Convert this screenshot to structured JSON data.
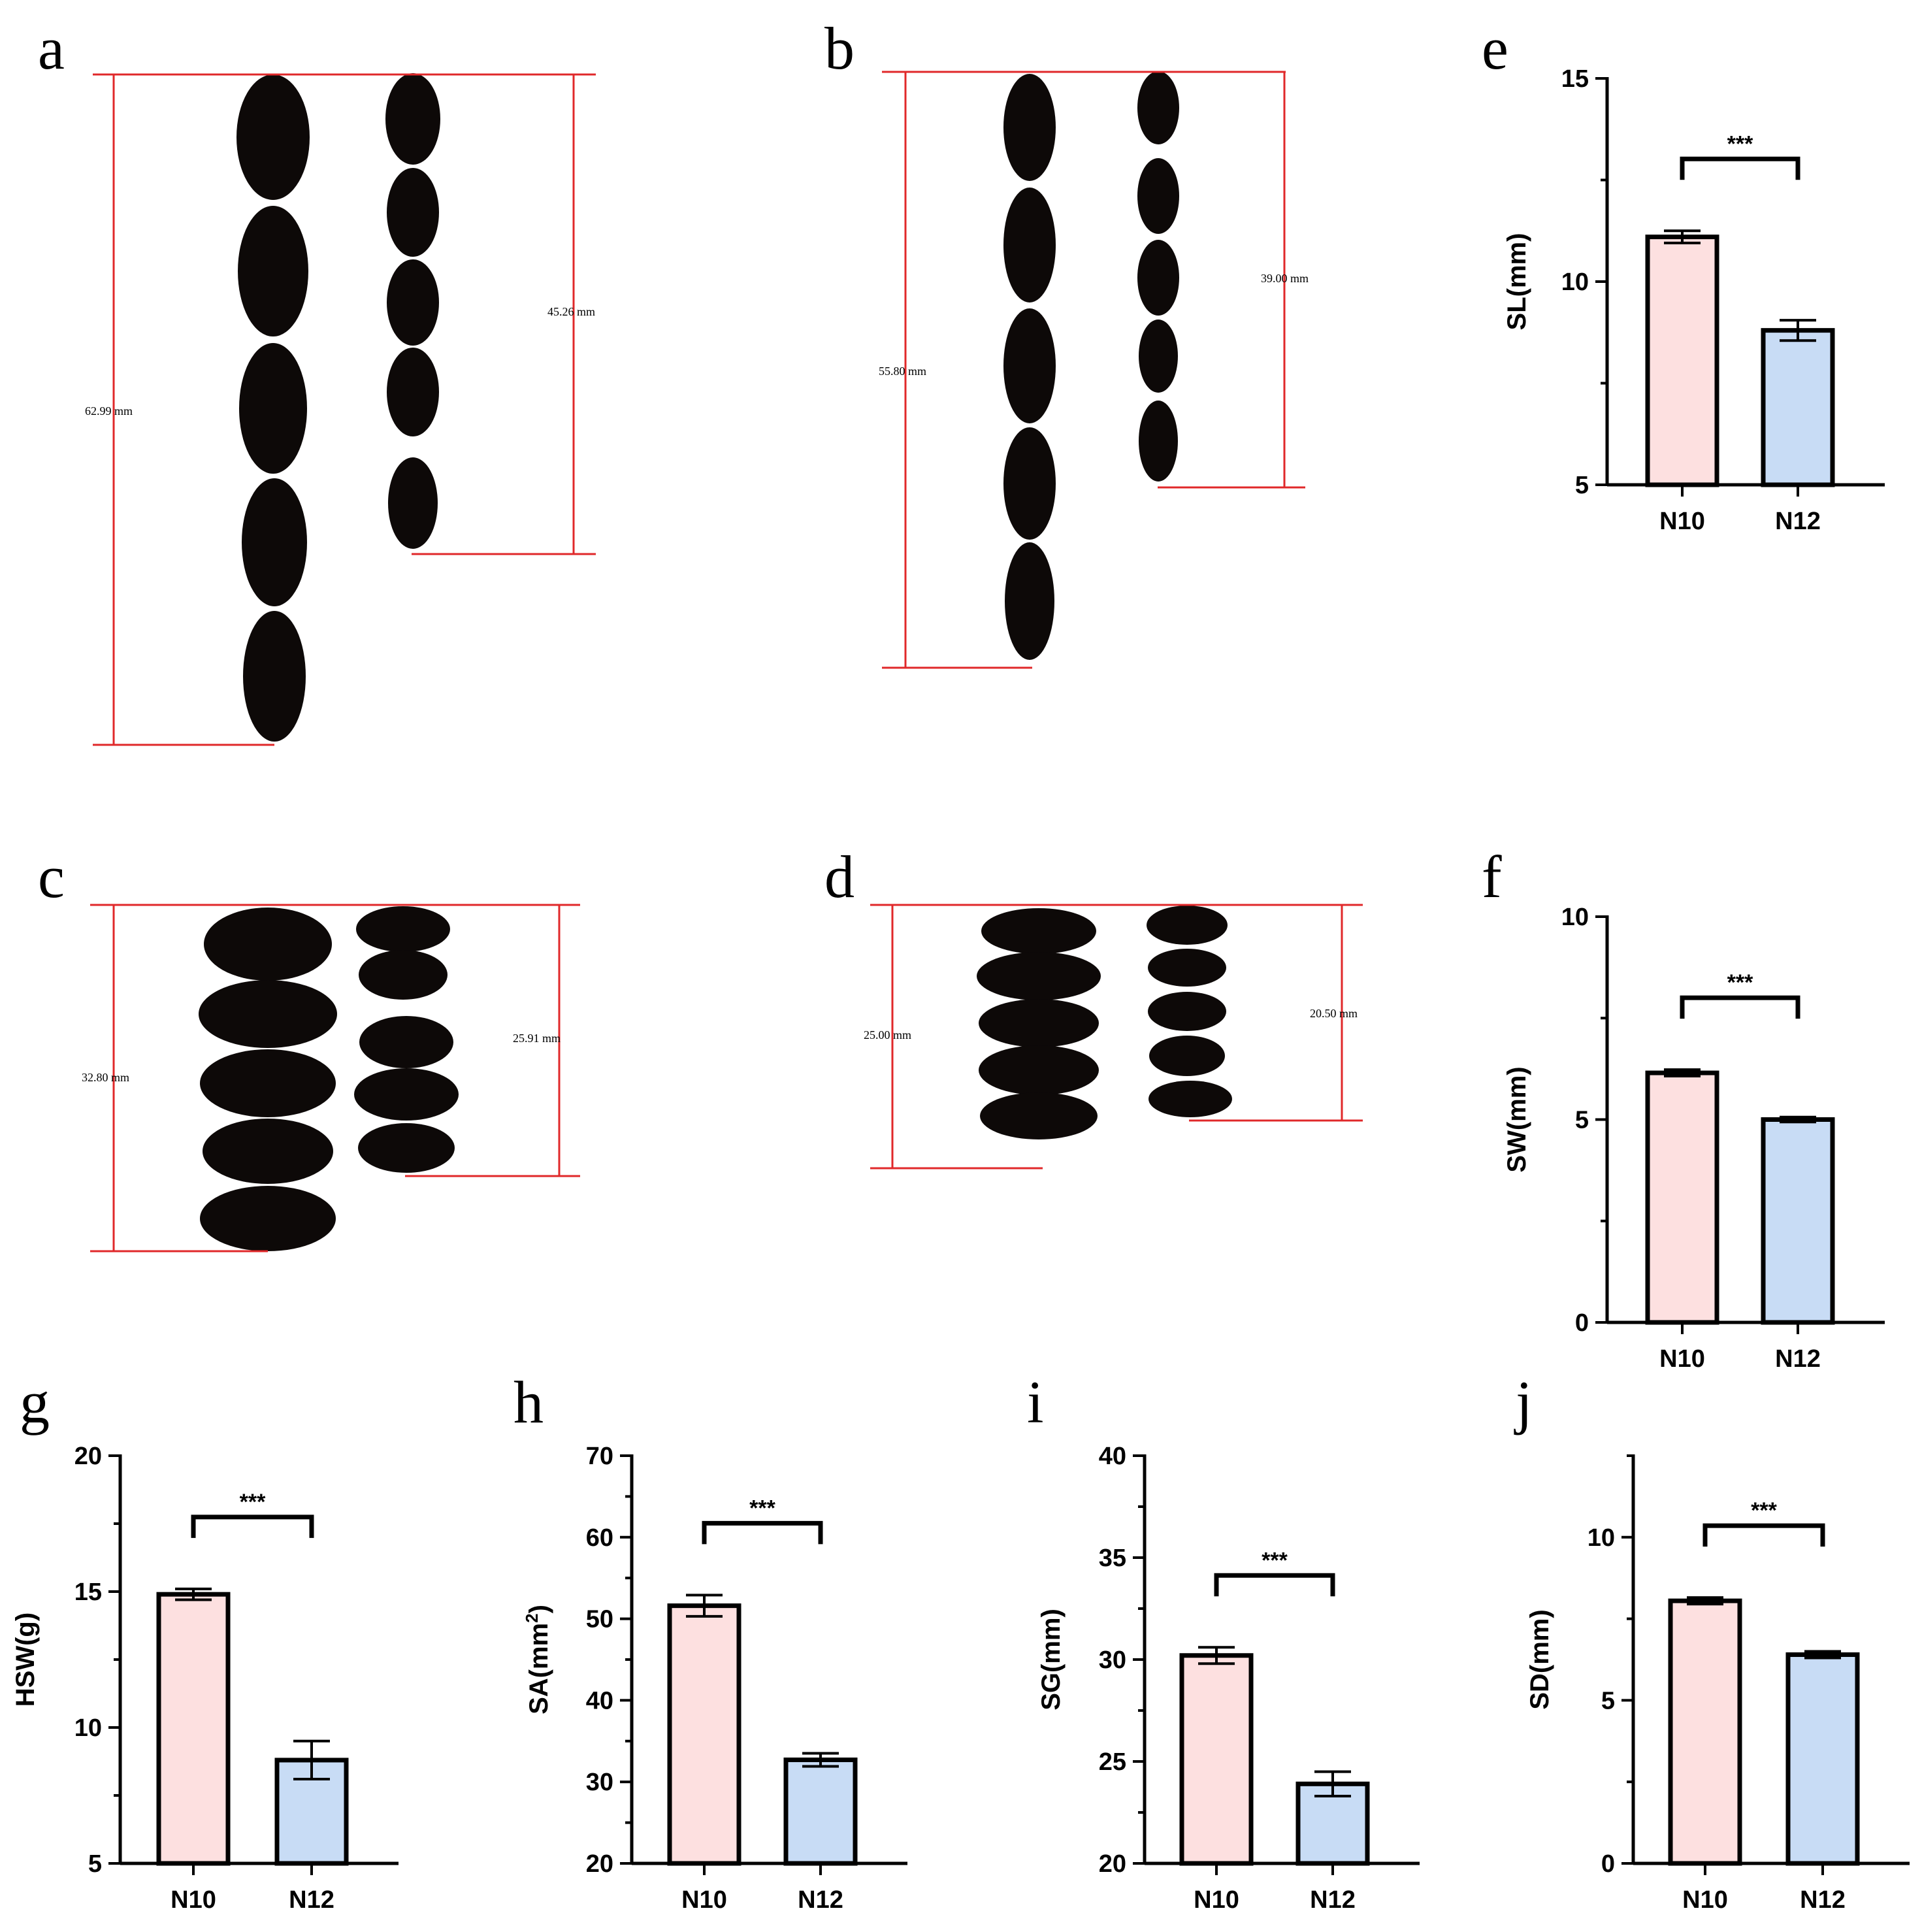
{
  "panels": {
    "a": {
      "letter": "a",
      "measure_long": "62.99 mm",
      "measure_short": "45.26 mm"
    },
    "b": {
      "letter": "b",
      "measure_long": "55.80 mm",
      "measure_short": "39.00 mm"
    },
    "c": {
      "letter": "c",
      "measure_long": "32.80 mm",
      "measure_short": "25.91 mm"
    },
    "d": {
      "letter": "d",
      "measure_long": "25.00 mm",
      "measure_short": "20.50 mm"
    }
  },
  "colors": {
    "N10": "#fde0e0",
    "N12": "#c8dcf5",
    "measure_line": "#e0282a",
    "seed": "#0d0908",
    "axis": "#000000"
  },
  "chart_data": [
    {
      "id": "e",
      "letter": "e",
      "type": "bar",
      "categories": [
        "N10",
        "N12"
      ],
      "values": [
        11.1,
        8.8
      ],
      "errors": [
        0.15,
        0.25
      ],
      "ylabel": "SL(mm)",
      "ylim": [
        5,
        15
      ],
      "yticks": [
        5,
        10,
        15
      ],
      "significance": "***"
    },
    {
      "id": "f",
      "letter": "f",
      "type": "bar",
      "categories": [
        "N10",
        "N12"
      ],
      "values": [
        6.15,
        5.0
      ],
      "errors": [
        0.08,
        0.06
      ],
      "ylabel": "SW(mm)",
      "ylim": [
        0,
        10
      ],
      "yticks": [
        0,
        5,
        10
      ],
      "significance": "***"
    },
    {
      "id": "g",
      "letter": "g",
      "type": "bar",
      "categories": [
        "N10",
        "N12"
      ],
      "values": [
        14.9,
        8.8
      ],
      "errors": [
        0.2,
        0.7
      ],
      "ylabel": "HSW(g)",
      "ylim": [
        5,
        20
      ],
      "yticks": [
        5,
        10,
        15,
        20
      ],
      "significance": "***"
    },
    {
      "id": "h",
      "letter": "h",
      "type": "bar",
      "categories": [
        "N10",
        "N12"
      ],
      "values": [
        51.6,
        32.7
      ],
      "errors": [
        1.3,
        0.8
      ],
      "ylabel": "SA(mm2)",
      "ylabel_main": "SA(mm",
      "ylabel_sup": "2",
      "ylabel_end": ")",
      "ylim": [
        20,
        70
      ],
      "yticks": [
        20,
        30,
        40,
        50,
        60,
        70
      ],
      "significance": "***"
    },
    {
      "id": "i",
      "letter": "i",
      "type": "bar",
      "categories": [
        "N10",
        "N12"
      ],
      "values": [
        30.2,
        23.9
      ],
      "errors": [
        0.4,
        0.6
      ],
      "ylabel": "SG(mm)",
      "ylim": [
        20,
        40
      ],
      "yticks": [
        20,
        25,
        30,
        35,
        40
      ],
      "significance": "***"
    },
    {
      "id": "j",
      "letter": "j",
      "type": "bar",
      "categories": [
        "N10",
        "N12"
      ],
      "values": [
        8.05,
        6.4
      ],
      "errors": [
        0.1,
        0.1
      ],
      "ylabel": "SD(mm)",
      "ylim": [
        0,
        12.5
      ],
      "yticks": [
        0,
        5,
        10
      ],
      "significance": "***"
    }
  ]
}
